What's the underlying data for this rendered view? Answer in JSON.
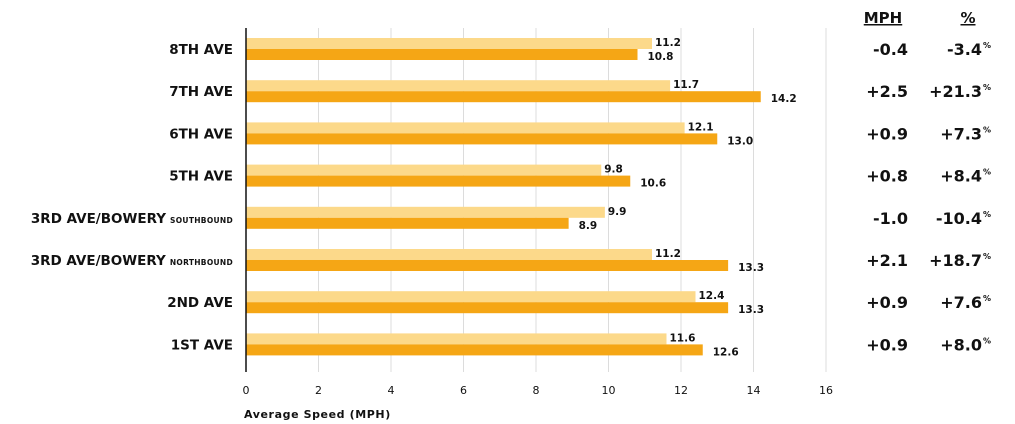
{
  "chart_data": {
    "type": "bar",
    "orientation": "horizontal",
    "categories": [
      {
        "main": "8TH AVE",
        "sub": ""
      },
      {
        "main": "7TH AVE",
        "sub": ""
      },
      {
        "main": "6TH AVE",
        "sub": ""
      },
      {
        "main": "5TH AVE",
        "sub": ""
      },
      {
        "main": "3RD AVE/BOWERY",
        "sub": "SOUTHBOUND"
      },
      {
        "main": "3RD AVE/BOWERY",
        "sub": "NORTHBOUND"
      },
      {
        "main": "2ND AVE",
        "sub": ""
      },
      {
        "main": "1ST AVE",
        "sub": ""
      }
    ],
    "series": [
      {
        "values": [
          11.2,
          11.7,
          12.1,
          9.8,
          9.9,
          11.2,
          12.4,
          11.6
        ],
        "labels": [
          "11.2",
          "11.7",
          "12.1",
          "9.8",
          "9.9",
          "11.2",
          "12.4",
          "11.6"
        ],
        "color": "#fcd98a"
      },
      {
        "values": [
          10.8,
          14.2,
          13.0,
          10.6,
          8.9,
          13.3,
          13.3,
          12.6
        ],
        "labels": [
          "10.8",
          "14.2",
          "13.0",
          "10.6",
          "8.9",
          "13.3",
          "13.3",
          "12.6"
        ],
        "color": "#f5a615"
      }
    ],
    "xlabel": "Average Speed (MPH)",
    "xlim": [
      0,
      16
    ],
    "xticks": [
      "0",
      "2",
      "4",
      "6",
      "8",
      "10",
      "12",
      "14",
      "16"
    ],
    "grid": true,
    "change_table": {
      "headers": {
        "mph": "MPH",
        "pct": "%"
      },
      "mph": [
        "-0.4",
        "+2.5",
        "+0.9",
        "+0.8",
        "-1.0",
        "+2.1",
        "+0.9",
        "+0.9"
      ],
      "pct": [
        "-3.4",
        "+21.3",
        "+7.3",
        "+8.4",
        "-10.4",
        "+18.7",
        "+7.6",
        "+8.0"
      ],
      "pct_suffix": "%"
    }
  }
}
